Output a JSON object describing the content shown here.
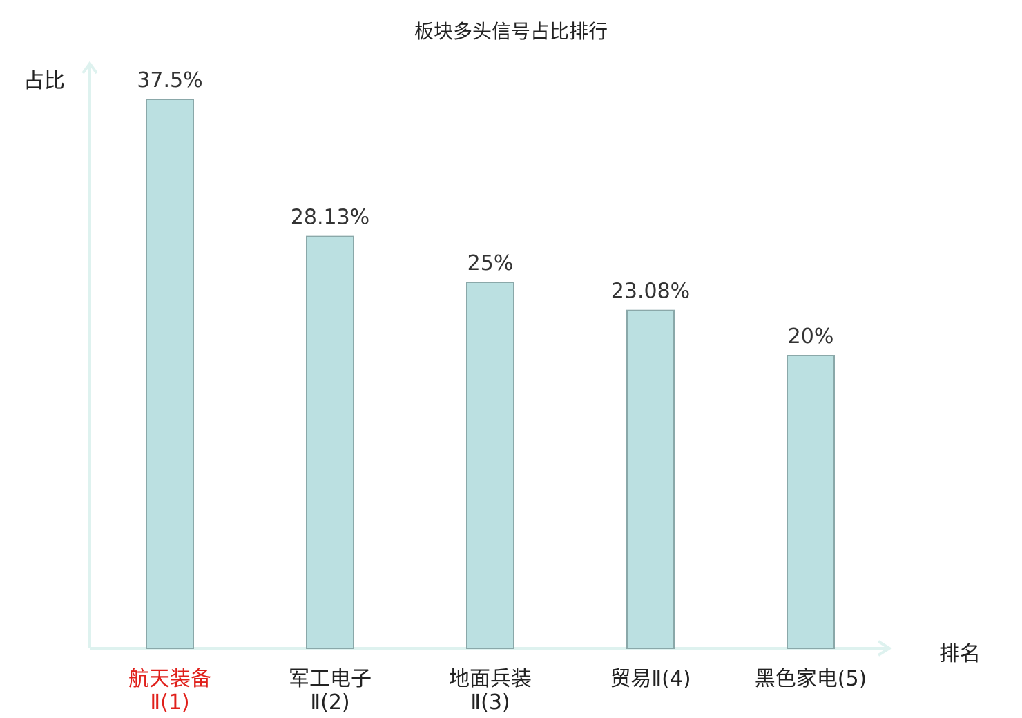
{
  "chart_data": {
    "type": "bar",
    "title": "板块多头信号占比排行",
    "ylabel": "占比",
    "xlabel": "排名",
    "categories": [
      [
        "航天装备",
        "Ⅱ(1)"
      ],
      [
        "军工电子",
        "Ⅱ(2)"
      ],
      [
        "地面兵装",
        "Ⅱ(3)"
      ],
      [
        "贸易Ⅱ(4)"
      ],
      [
        "黑色家电(5)"
      ]
    ],
    "values": [
      37.5,
      28.13,
      25,
      23.08,
      20
    ],
    "value_labels": [
      "37.5%",
      "28.13%",
      "25%",
      "23.08%",
      "20%"
    ],
    "highlight_index": 0,
    "ylim": [
      0,
      37.5
    ],
    "grid": false,
    "colors": {
      "bar_fill": "#bbe0e1",
      "bar_stroke": "#8aa8a9",
      "axis": "#def2ef",
      "highlight_label": "#e0201b",
      "label": "#222222",
      "value_label": "#333333"
    }
  }
}
